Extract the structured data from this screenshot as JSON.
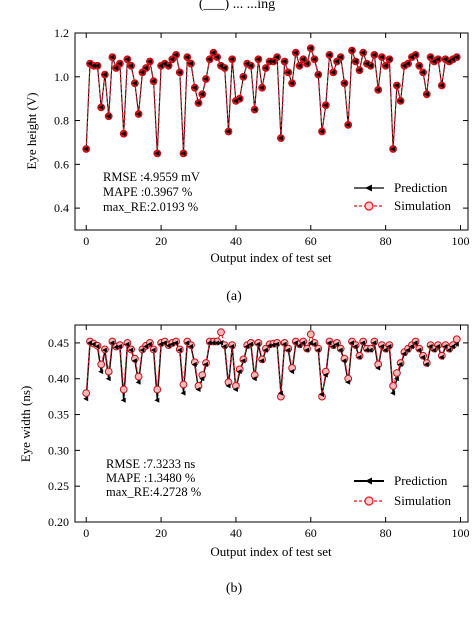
{
  "top_fragment": "(___) ... ...ing",
  "chart_data": [
    {
      "type": "line",
      "caption": "(a)",
      "title": "",
      "xlabel": "Output index of test set",
      "ylabel": "Eye height (V)",
      "xlim": [
        -3,
        102
      ],
      "ylim": [
        0.3,
        1.2
      ],
      "xticks": [
        0,
        20,
        40,
        60,
        80,
        100
      ],
      "yticks": [
        0.4,
        0.6,
        0.8,
        1.0,
        1.2
      ],
      "ytick_labels": [
        "0.4",
        "0.6",
        "0.8",
        "1.0",
        "1.2"
      ],
      "grid": false,
      "legend_position": "bottom-right",
      "stats": [
        "RMSE :4.9559 mV",
        "MAPE :0.3967 %",
        "max_RE:2.0193 %"
      ],
      "x": [
        0,
        1,
        2,
        3,
        4,
        5,
        6,
        7,
        8,
        9,
        10,
        11,
        12,
        13,
        14,
        15,
        16,
        17,
        18,
        19,
        20,
        21,
        22,
        23,
        24,
        25,
        26,
        27,
        28,
        29,
        30,
        31,
        32,
        33,
        34,
        35,
        36,
        37,
        38,
        39,
        40,
        41,
        42,
        43,
        44,
        45,
        46,
        47,
        48,
        49,
        50,
        51,
        52,
        53,
        54,
        55,
        56,
        57,
        58,
        59,
        60,
        61,
        62,
        63,
        64,
        65,
        66,
        67,
        68,
        69,
        70,
        71,
        72,
        73,
        74,
        75,
        76,
        77,
        78,
        79,
        80,
        81,
        82,
        83,
        84,
        85,
        86,
        87,
        88,
        89,
        90,
        91,
        92,
        93,
        94,
        95,
        96,
        97,
        98,
        99
      ],
      "series": [
        {
          "name": "Prediction",
          "color": "#000000",
          "marker": "left-triangle",
          "values": [
            0.67,
            1.06,
            1.05,
            1.05,
            0.86,
            1.01,
            0.82,
            1.09,
            1.04,
            1.06,
            0.74,
            1.08,
            1.05,
            0.97,
            0.83,
            1.02,
            1.04,
            1.07,
            0.98,
            0.65,
            1.05,
            1.06,
            1.05,
            1.08,
            1.1,
            1.02,
            0.65,
            1.09,
            1.06,
            0.95,
            0.88,
            0.92,
            0.99,
            1.08,
            1.11,
            1.09,
            1.05,
            1.04,
            0.75,
            1.08,
            0.89,
            0.9,
            1.0,
            1.06,
            1.05,
            0.85,
            1.08,
            0.95,
            1.04,
            1.07,
            1.07,
            1.09,
            0.72,
            1.07,
            1.02,
            0.97,
            1.11,
            1.05,
            1.08,
            1.06,
            1.13,
            1.08,
            1.01,
            0.75,
            0.87,
            1.1,
            1.02,
            1.07,
            1.09,
            0.97,
            0.78,
            1.12,
            1.07,
            1.03,
            1.11,
            1.06,
            1.05,
            1.1,
            0.94,
            1.09,
            1.05,
            1.08,
            0.67,
            0.96,
            0.89,
            1.05,
            1.06,
            1.09,
            1.1,
            1.05,
            1.02,
            0.92,
            1.09,
            1.07,
            1.08,
            0.96,
            1.08,
            1.07,
            1.08,
            1.09
          ]
        },
        {
          "name": "Simulation",
          "color": "#e8141c",
          "marker": "circle",
          "dashed": true,
          "values": [
            0.67,
            1.06,
            1.05,
            1.05,
            0.86,
            1.01,
            0.82,
            1.09,
            1.04,
            1.06,
            0.74,
            1.08,
            1.05,
            0.97,
            0.83,
            1.02,
            1.04,
            1.07,
            0.98,
            0.65,
            1.05,
            1.06,
            1.05,
            1.08,
            1.1,
            1.02,
            0.65,
            1.09,
            1.06,
            0.95,
            0.88,
            0.92,
            0.99,
            1.08,
            1.11,
            1.09,
            1.05,
            1.04,
            0.75,
            1.08,
            0.89,
            0.9,
            1.0,
            1.06,
            1.05,
            0.85,
            1.08,
            0.95,
            1.04,
            1.07,
            1.07,
            1.09,
            0.72,
            1.07,
            1.02,
            0.97,
            1.11,
            1.05,
            1.08,
            1.06,
            1.13,
            1.08,
            1.01,
            0.75,
            0.87,
            1.1,
            1.02,
            1.07,
            1.09,
            0.97,
            0.78,
            1.12,
            1.07,
            1.03,
            1.11,
            1.06,
            1.05,
            1.1,
            0.94,
            1.09,
            1.05,
            1.08,
            0.67,
            0.96,
            0.89,
            1.05,
            1.06,
            1.09,
            1.1,
            1.05,
            1.02,
            0.92,
            1.09,
            1.07,
            1.08,
            0.96,
            1.08,
            1.07,
            1.08,
            1.09
          ]
        }
      ]
    },
    {
      "type": "line",
      "caption": "(b)",
      "title": "",
      "xlabel": "Output index of test set",
      "ylabel": "Eye width (ns)",
      "xlim": [
        -3,
        102
      ],
      "ylim": [
        0.2,
        0.475
      ],
      "xticks": [
        0,
        20,
        40,
        60,
        80,
        100
      ],
      "yticks": [
        0.2,
        0.25,
        0.3,
        0.35,
        0.4,
        0.45
      ],
      "ytick_labels": [
        "0.20",
        "0.25",
        "0.30",
        "0.35",
        "0.40",
        "0.45"
      ],
      "grid": false,
      "legend_position": "bottom-right",
      "stats": [
        "RMSE :7.3233 ns",
        "MAPE :1.3480 %",
        "max_RE:4.2728 %"
      ],
      "x": [
        0,
        1,
        2,
        3,
        4,
        5,
        6,
        7,
        8,
        9,
        10,
        11,
        12,
        13,
        14,
        15,
        16,
        17,
        18,
        19,
        20,
        21,
        22,
        23,
        24,
        25,
        26,
        27,
        28,
        29,
        30,
        31,
        32,
        33,
        34,
        35,
        36,
        37,
        38,
        39,
        40,
        41,
        42,
        43,
        44,
        45,
        46,
        47,
        48,
        49,
        50,
        51,
        52,
        53,
        54,
        55,
        56,
        57,
        58,
        59,
        60,
        61,
        62,
        63,
        64,
        65,
        66,
        67,
        68,
        69,
        70,
        71,
        72,
        73,
        74,
        75,
        76,
        77,
        78,
        79,
        80,
        81,
        82,
        83,
        84,
        85,
        86,
        87,
        88,
        89,
        90,
        91,
        92,
        93,
        94,
        95,
        96,
        97,
        98,
        99
      ],
      "series": [
        {
          "name": "Prediction",
          "color": "#000000",
          "marker": "left-triangle",
          "values": [
            0.372,
            0.45,
            0.448,
            0.445,
            0.41,
            0.44,
            0.4,
            0.45,
            0.444,
            0.445,
            0.37,
            0.448,
            0.44,
            0.425,
            0.395,
            0.44,
            0.445,
            0.448,
            0.44,
            0.37,
            0.448,
            0.45,
            0.446,
            0.448,
            0.45,
            0.44,
            0.38,
            0.45,
            0.445,
            0.42,
            0.385,
            0.4,
            0.42,
            0.45,
            0.45,
            0.45,
            0.45,
            0.445,
            0.39,
            0.445,
            0.385,
            0.41,
            0.425,
            0.445,
            0.448,
            0.4,
            0.448,
            0.425,
            0.44,
            0.446,
            0.447,
            0.448,
            0.38,
            0.448,
            0.44,
            0.41,
            0.45,
            0.446,
            0.45,
            0.44,
            0.45,
            0.448,
            0.44,
            0.378,
            0.405,
            0.45,
            0.445,
            0.448,
            0.44,
            0.425,
            0.395,
            0.45,
            0.445,
            0.43,
            0.45,
            0.44,
            0.44,
            0.45,
            0.415,
            0.445,
            0.44,
            0.445,
            0.38,
            0.4,
            0.42,
            0.435,
            0.44,
            0.445,
            0.45,
            0.44,
            0.43,
            0.42,
            0.445,
            0.44,
            0.445,
            0.43,
            0.445,
            0.44,
            0.445,
            0.448
          ]
        },
        {
          "name": "Simulation",
          "color": "#e8141c",
          "marker": "circle",
          "dashed": true,
          "values": [
            0.38,
            0.452,
            0.449,
            0.446,
            0.42,
            0.441,
            0.41,
            0.452,
            0.445,
            0.447,
            0.385,
            0.45,
            0.441,
            0.428,
            0.403,
            0.441,
            0.446,
            0.45,
            0.441,
            0.385,
            0.45,
            0.452,
            0.447,
            0.45,
            0.452,
            0.441,
            0.392,
            0.452,
            0.447,
            0.423,
            0.39,
            0.405,
            0.422,
            0.452,
            0.452,
            0.452,
            0.465,
            0.447,
            0.395,
            0.447,
            0.39,
            0.413,
            0.427,
            0.447,
            0.45,
            0.405,
            0.45,
            0.427,
            0.442,
            0.448,
            0.449,
            0.45,
            0.375,
            0.45,
            0.442,
            0.415,
            0.452,
            0.448,
            0.452,
            0.442,
            0.462,
            0.45,
            0.442,
            0.375,
            0.41,
            0.452,
            0.447,
            0.45,
            0.442,
            0.428,
            0.4,
            0.452,
            0.447,
            0.432,
            0.452,
            0.442,
            0.442,
            0.452,
            0.42,
            0.447,
            0.442,
            0.447,
            0.39,
            0.408,
            0.422,
            0.437,
            0.442,
            0.447,
            0.452,
            0.442,
            0.432,
            0.422,
            0.447,
            0.442,
            0.447,
            0.432,
            0.447,
            0.442,
            0.447,
            0.455
          ]
        }
      ]
    }
  ]
}
